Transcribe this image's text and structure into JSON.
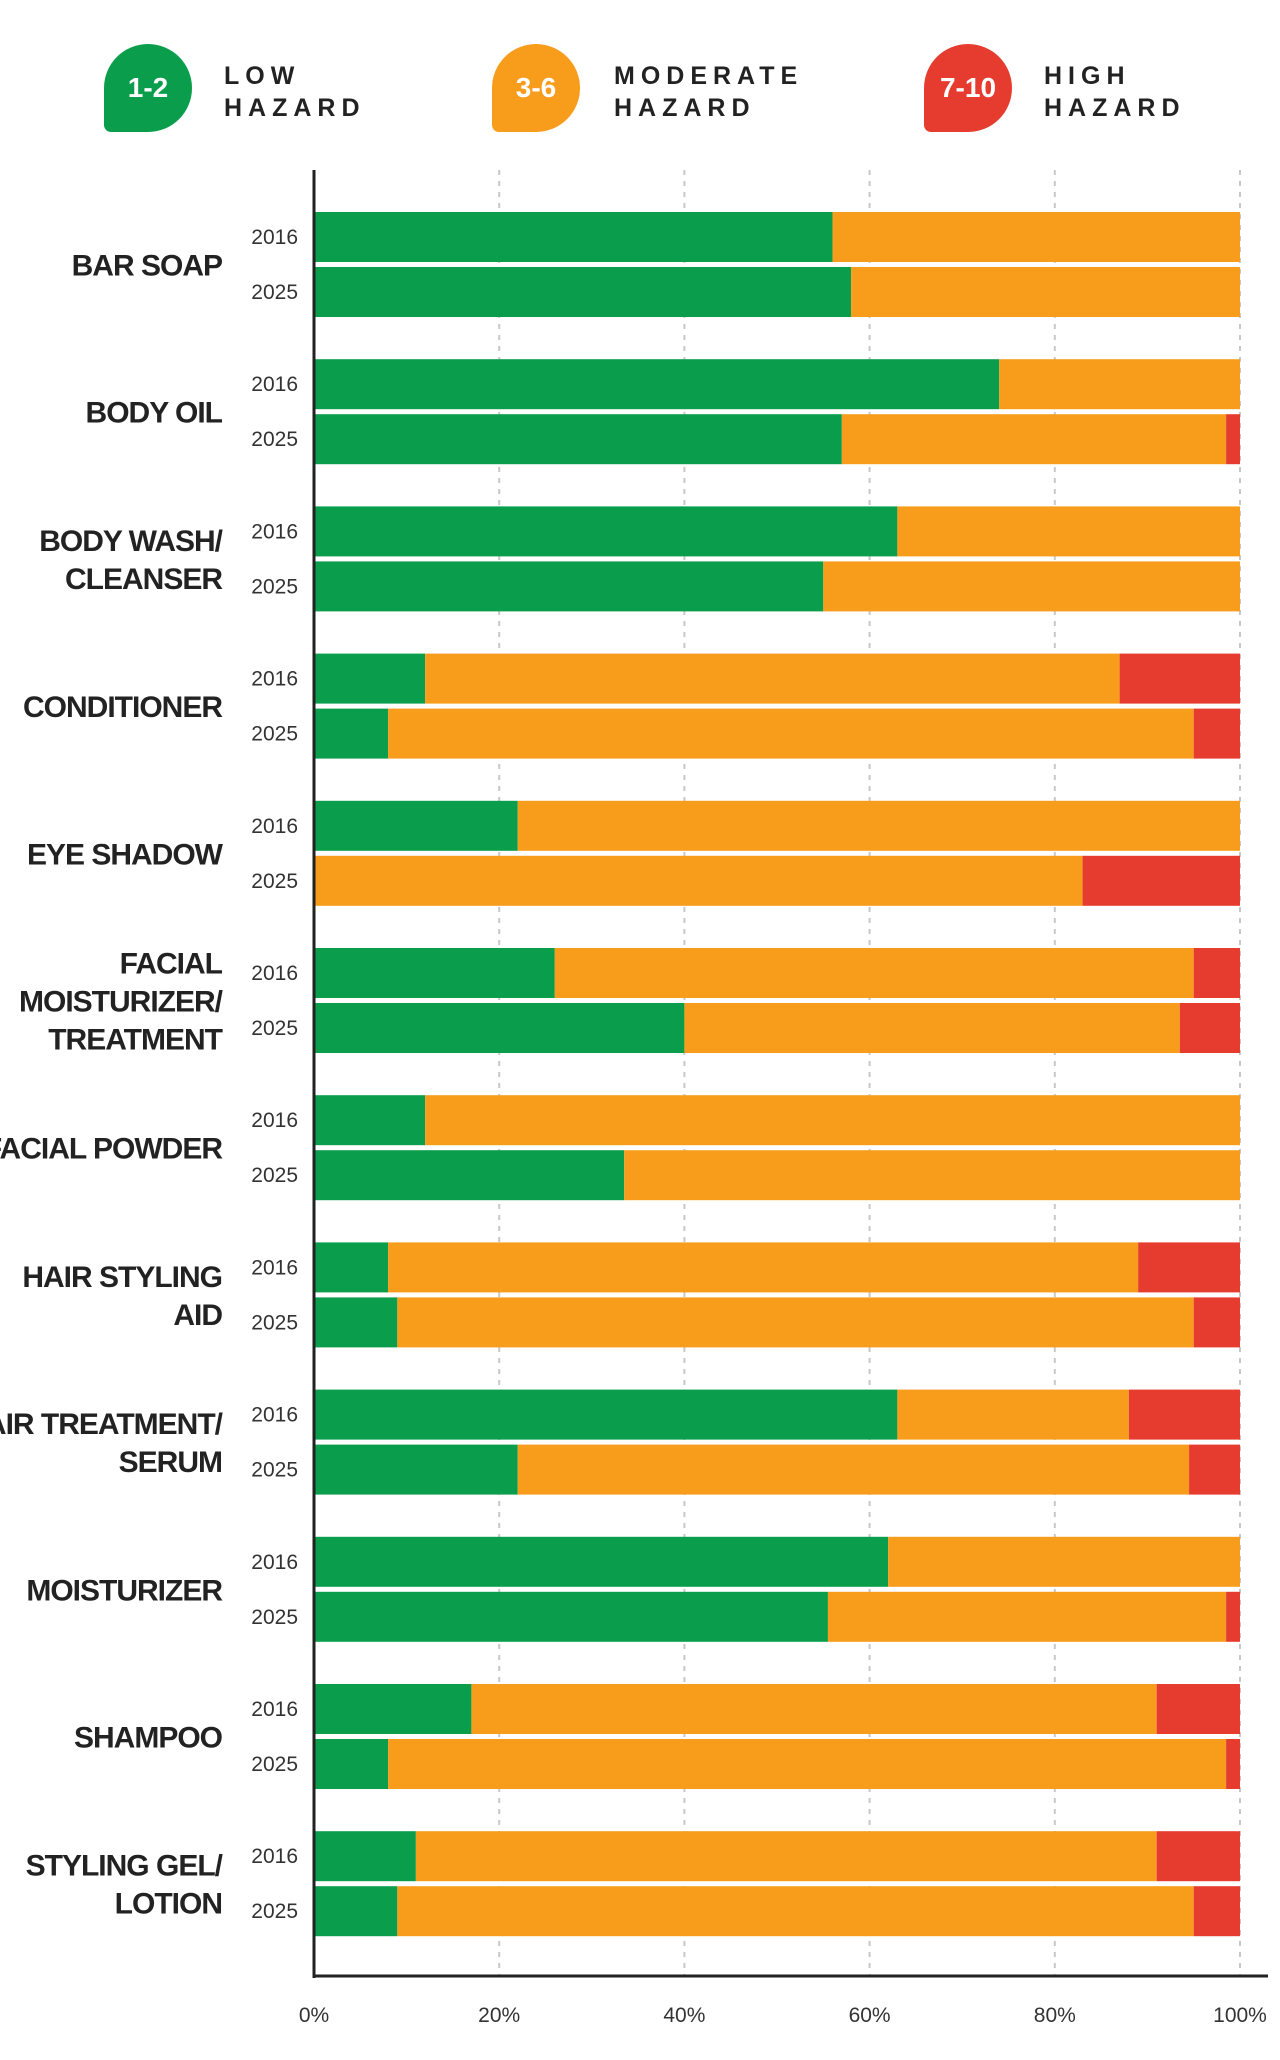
{
  "legend": {
    "low": {
      "badge": "1-2",
      "line1": "LOW",
      "line2": "HAZARD",
      "color": "#0a9e4c"
    },
    "moderate": {
      "badge": "3-6",
      "line1": "MODERATE",
      "line2": "HAZARD",
      "color": "#f89c1c"
    },
    "high": {
      "badge": "7-10",
      "line1": "HIGH",
      "line2": "HAZARD",
      "color": "#e63c2f"
    }
  },
  "chart_data": {
    "type": "bar",
    "orientation": "horizontal",
    "stacked": true,
    "xlim": [
      0,
      100
    ],
    "ticks": [
      "0%",
      "20%",
      "40%",
      "60%",
      "80%",
      "100%"
    ],
    "grid": true,
    "series_names": [
      "Low hazard (1-2)",
      "Moderate hazard (3-6)",
      "High hazard (7-10)"
    ],
    "colors": [
      "#0a9e4c",
      "#f89c1c",
      "#e63c2f"
    ],
    "categories": [
      {
        "label": [
          "BAR SOAP"
        ],
        "rows": [
          {
            "year": "2016",
            "values": [
              56,
              44,
              0
            ]
          },
          {
            "year": "2025",
            "values": [
              58,
              42,
              0
            ]
          }
        ]
      },
      {
        "label": [
          "BODY OIL"
        ],
        "rows": [
          {
            "year": "2016",
            "values": [
              74,
              26,
              0
            ]
          },
          {
            "year": "2025",
            "values": [
              57,
              41.5,
              1.5
            ]
          }
        ]
      },
      {
        "label": [
          "BODY WASH/",
          "CLEANSER"
        ],
        "rows": [
          {
            "year": "2016",
            "values": [
              63,
              37,
              0
            ]
          },
          {
            "year": "2025",
            "values": [
              55,
              45,
              0
            ]
          }
        ]
      },
      {
        "label": [
          "CONDITIONER"
        ],
        "rows": [
          {
            "year": "2016",
            "values": [
              12,
              75,
              13
            ]
          },
          {
            "year": "2025",
            "values": [
              8,
              87,
              5
            ]
          }
        ]
      },
      {
        "label": [
          "EYE SHADOW"
        ],
        "rows": [
          {
            "year": "2016",
            "values": [
              22,
              78,
              0
            ]
          },
          {
            "year": "2025",
            "values": [
              0,
              83,
              17
            ]
          }
        ]
      },
      {
        "label": [
          "FACIAL",
          "MOISTURIZER/",
          "TREATMENT"
        ],
        "rows": [
          {
            "year": "2016",
            "values": [
              26,
              69,
              5
            ]
          },
          {
            "year": "2025",
            "values": [
              40,
              53.5,
              6.5
            ]
          }
        ]
      },
      {
        "label": [
          "FACIAL POWDER"
        ],
        "rows": [
          {
            "year": "2016",
            "values": [
              12,
              88,
              0
            ]
          },
          {
            "year": "2025",
            "values": [
              33.5,
              66.5,
              0
            ]
          }
        ]
      },
      {
        "label": [
          "HAIR STYLING",
          "AID"
        ],
        "rows": [
          {
            "year": "2016",
            "values": [
              8,
              81,
              11
            ]
          },
          {
            "year": "2025",
            "values": [
              9,
              86,
              5
            ]
          }
        ]
      },
      {
        "label": [
          "HAIR TREATMENT/",
          "SERUM"
        ],
        "rows": [
          {
            "year": "2016",
            "values": [
              63,
              25,
              12
            ]
          },
          {
            "year": "2025",
            "values": [
              22,
              72.5,
              5.5
            ]
          }
        ]
      },
      {
        "label": [
          "MOISTURIZER"
        ],
        "rows": [
          {
            "year": "2016",
            "values": [
              62,
              38,
              0
            ]
          },
          {
            "year": "2025",
            "values": [
              55.5,
              43,
              1.5
            ]
          }
        ]
      },
      {
        "label": [
          "SHAMPOO"
        ],
        "rows": [
          {
            "year": "2016",
            "values": [
              17,
              74,
              9
            ]
          },
          {
            "year": "2025",
            "values": [
              8,
              90.5,
              1.5
            ]
          }
        ]
      },
      {
        "label": [
          "STYLING GEL/",
          "LOTION"
        ],
        "rows": [
          {
            "year": "2016",
            "values": [
              11,
              80,
              9
            ]
          },
          {
            "year": "2025",
            "values": [
              9,
              86,
              5
            ]
          }
        ]
      }
    ]
  }
}
